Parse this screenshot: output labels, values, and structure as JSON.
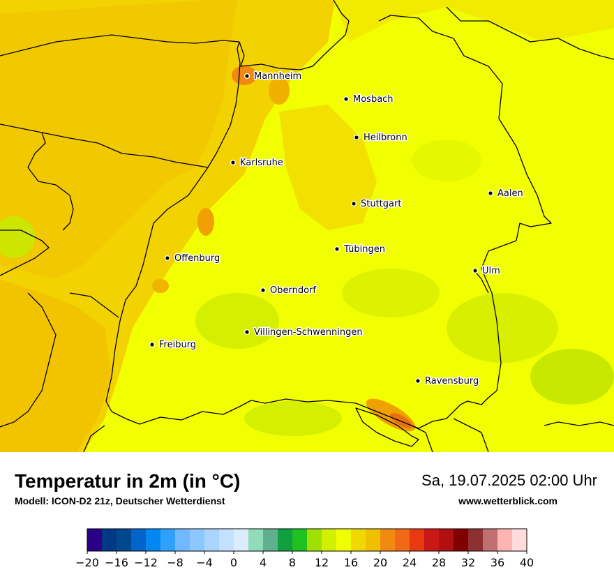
{
  "map": {
    "cities": [
      {
        "name": "Mannheim"
      },
      {
        "name": "Mosbach"
      },
      {
        "name": "Heilbronn"
      },
      {
        "name": "Karlsruhe"
      },
      {
        "name": "Aalen"
      },
      {
        "name": "Stuttgart"
      },
      {
        "name": "Tübingen"
      },
      {
        "name": "Offenburg"
      },
      {
        "name": "Ulm"
      },
      {
        "name": "Oberndorf"
      },
      {
        "name": "Villingen-Schwenningen"
      },
      {
        "name": "Freiburg"
      },
      {
        "name": "Ravensburg"
      }
    ],
    "colors": {
      "base": "#f2ff00",
      "warm": "#f2d200",
      "warmer": "#f2c000",
      "hot": "#f08a10",
      "cool": "#cceb00",
      "border": "#000000"
    }
  },
  "header": {
    "title": "Temperatur in 2m (in °C)",
    "subtitle": "Modell: ICON-D2 21z, Deutscher Wetterdienst",
    "datetime": "Sa, 19.07.2025 02:00 Uhr",
    "website": "www.wetterblick.com"
  },
  "legend": {
    "colors": [
      "#2a0086",
      "#003a86",
      "#00488e",
      "#0064c8",
      "#0088f0",
      "#30a0ff",
      "#70b8ff",
      "#8cc8ff",
      "#a8d4ff",
      "#c4e0ff",
      "#dcecff",
      "#90dcb8",
      "#60b090",
      "#10a040",
      "#20c020",
      "#a0e000",
      "#d0f000",
      "#f0ff00",
      "#f0d800",
      "#f0c000",
      "#f08a10",
      "#f06818",
      "#e83a10",
      "#c81818",
      "#b01010",
      "#800000",
      "#8c3030",
      "#c07070",
      "#ffb4b4",
      "#ffdcdc"
    ],
    "ticks": [
      "−20",
      "−16",
      "−12",
      "−8",
      "−4",
      "0",
      "4",
      "8",
      "12",
      "16",
      "20",
      "24",
      "28",
      "32",
      "36",
      "40"
    ]
  }
}
